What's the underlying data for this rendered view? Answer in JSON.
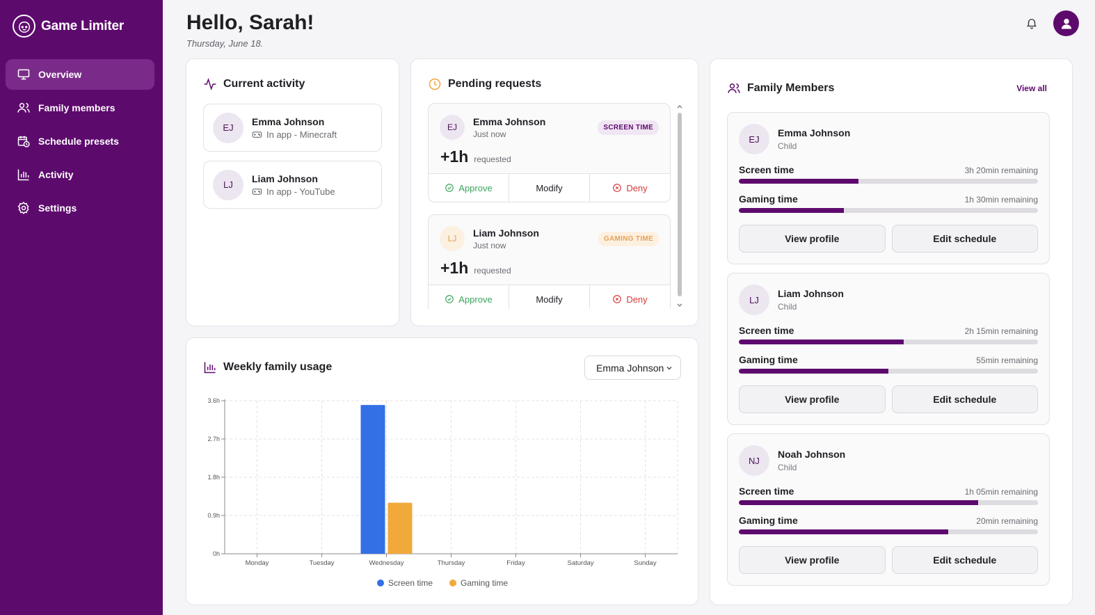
{
  "app": {
    "name": "Game Limiter"
  },
  "nav": [
    {
      "label": "Overview",
      "icon": "monitor-icon",
      "active": true
    },
    {
      "label": "Family members",
      "icon": "users-icon"
    },
    {
      "label": "Schedule presets",
      "icon": "calendar-clock-icon"
    },
    {
      "label": "Activity",
      "icon": "bar-chart-icon"
    },
    {
      "label": "Settings",
      "icon": "gear-icon"
    }
  ],
  "header": {
    "greeting": "Hello, Sarah!",
    "date": "Thursday, June 18."
  },
  "current_activity": {
    "title": "Current activity",
    "items": [
      {
        "initials": "EJ",
        "name": "Emma Johnson",
        "status": "In app - Minecraft"
      },
      {
        "initials": "LJ",
        "name": "Liam Johnson",
        "status": "In app - YouTube"
      }
    ]
  },
  "pending_requests": {
    "title": "Pending requests",
    "items": [
      {
        "initials": "EJ",
        "name": "Emma Johnson",
        "time": "Just now",
        "badge": "SCREEN TIME",
        "amount": "+1h",
        "amount_note": "requested",
        "approve": "Approve",
        "modify": "Modify",
        "deny": "Deny"
      },
      {
        "initials": "LJ",
        "name": "Liam Johnson",
        "time": "Just now",
        "badge": "GAMING TIME",
        "amount": "+1h",
        "amount_note": "requested",
        "approve": "Approve",
        "modify": "Modify",
        "deny": "Deny"
      }
    ]
  },
  "weekly_usage": {
    "title": "Weekly family usage",
    "selected_member": "Emma Johnson"
  },
  "chart_data": {
    "type": "bar",
    "categories": [
      "Monday",
      "Tuesday",
      "Wednesday",
      "Thursday",
      "Friday",
      "Saturday",
      "Sunday"
    ],
    "series": [
      {
        "name": "Screen time",
        "color": "#3370e6",
        "values": [
          0,
          0,
          3.5,
          0,
          0,
          0,
          0
        ]
      },
      {
        "name": "Gaming time",
        "color": "#f2a93b",
        "values": [
          0,
          0,
          1.2,
          0,
          0,
          0,
          0
        ]
      }
    ],
    "ylim": [
      0,
      3.6
    ],
    "yticks": [
      "0h",
      "0.9h",
      "1.8h",
      "2.7h",
      "3.6h"
    ],
    "ytick_values": [
      0,
      0.9,
      1.8,
      2.7,
      3.6
    ],
    "grid": true,
    "legend": "bottom"
  },
  "family_members": {
    "title": "Family Members",
    "view_all": "View all",
    "screen_label": "Screen time",
    "gaming_label": "Gaming time",
    "view_profile": "View profile",
    "edit_schedule": "Edit schedule",
    "members": [
      {
        "initials": "EJ",
        "name": "Emma Johnson",
        "role": "Child",
        "screen_remaining": "3h 20min remaining",
        "screen_pct": 40,
        "gaming_remaining": "1h 30min remaining",
        "gaming_pct": 35
      },
      {
        "initials": "LJ",
        "name": "Liam Johnson",
        "role": "Child",
        "screen_remaining": "2h 15min remaining",
        "screen_pct": 55,
        "gaming_remaining": "55min remaining",
        "gaming_pct": 50
      },
      {
        "initials": "NJ",
        "name": "Noah Johnson",
        "role": "Child",
        "screen_remaining": "1h 05min remaining",
        "screen_pct": 80,
        "gaming_remaining": "20min remaining",
        "gaming_pct": 70
      }
    ]
  }
}
